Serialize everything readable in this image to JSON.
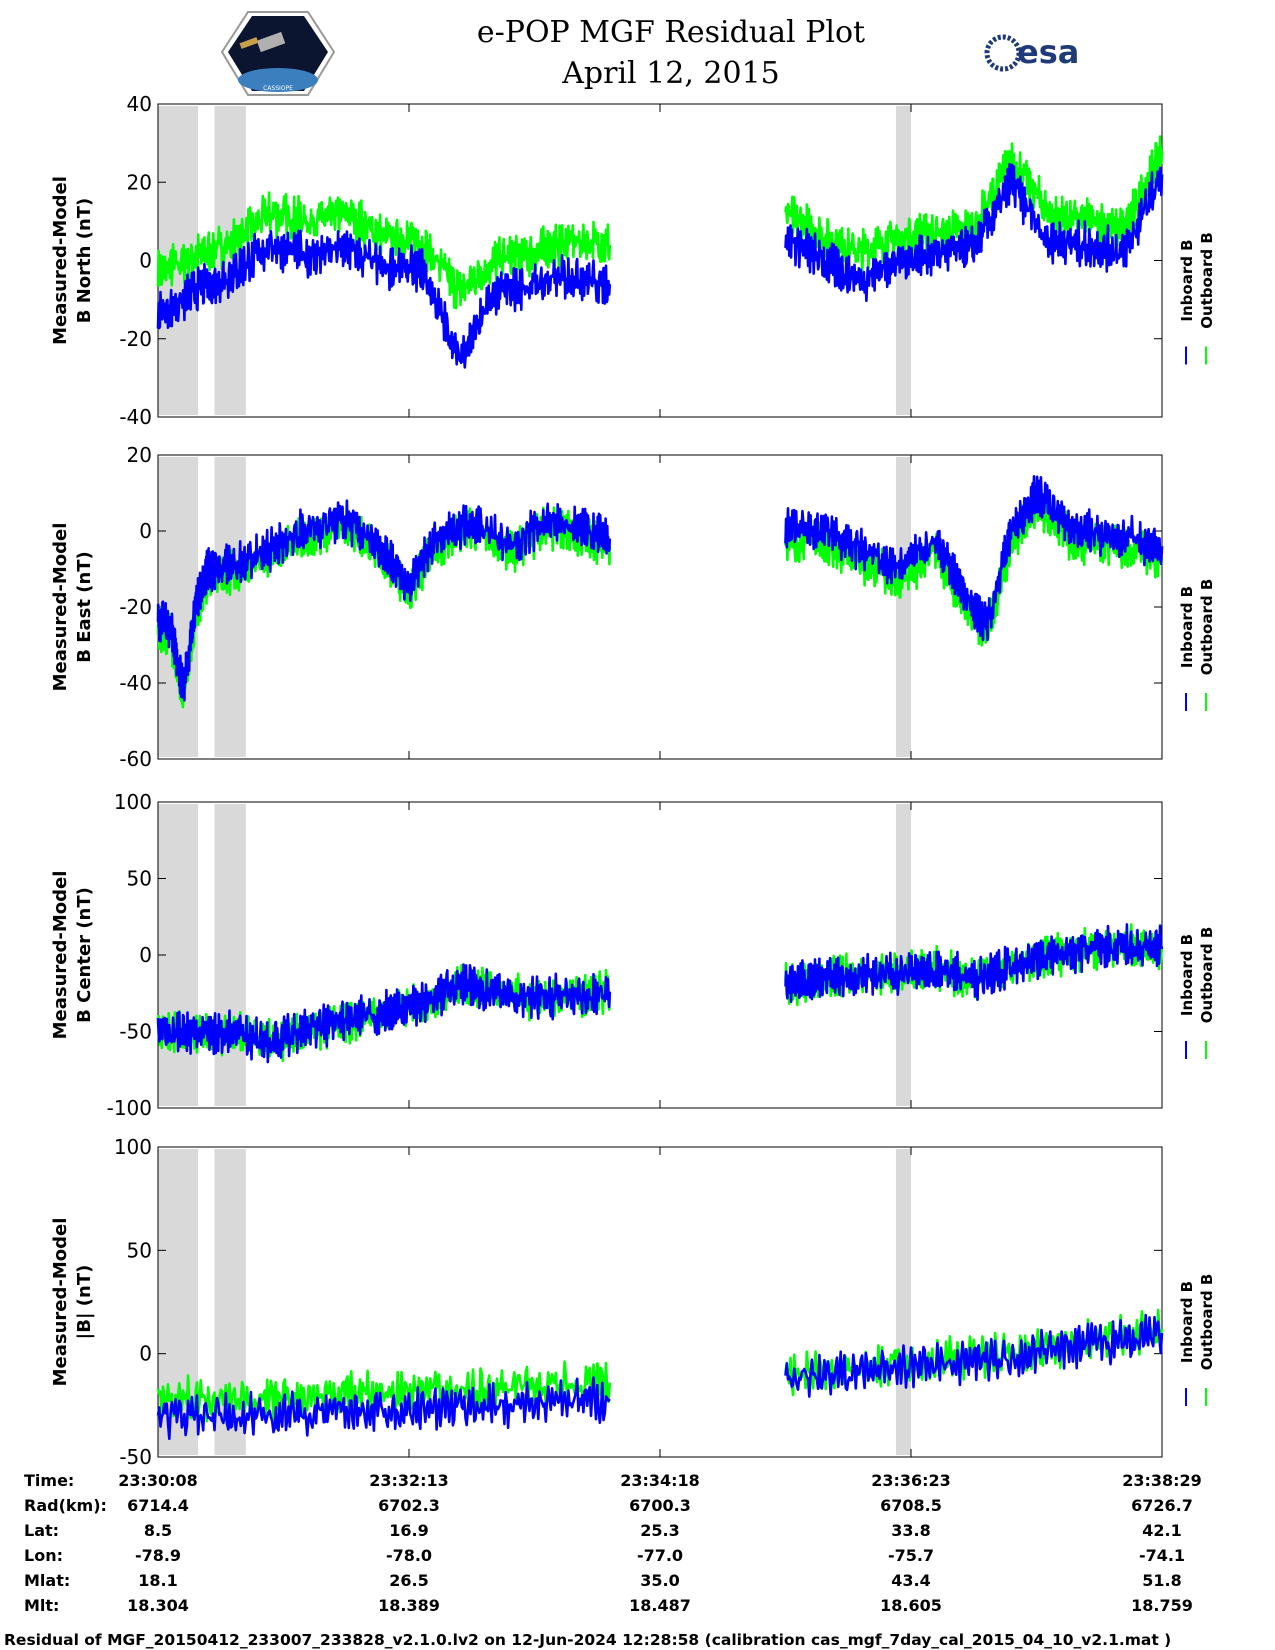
{
  "header": {
    "title": "e-POP MGF Residual Plot",
    "date": "April 12, 2015",
    "left_logo": "cassiope-mission-logo",
    "left_logo_text": "CASSIOPE",
    "right_logo": "esa-logo",
    "right_logo_text": "esa"
  },
  "legend": {
    "inboard": "Inboard B",
    "outboard": "Outboard B"
  },
  "colors": {
    "inboard": "#0000ff",
    "outboard": "#00ff00",
    "shade": "#d9d9d9",
    "axis": "#000000"
  },
  "chart_data": [
    {
      "type": "line",
      "id": "north",
      "ylabel": [
        "Measured-Model",
        "B North (nT)"
      ],
      "ylim": [
        -40,
        40
      ],
      "yticks": [
        -40,
        -20,
        0,
        20,
        40
      ],
      "shaded_x": [
        [
          0.0,
          0.32
        ],
        [
          0.45,
          0.7
        ],
        [
          5.88,
          6.0
        ]
      ],
      "segments": [
        {
          "x": [
            0,
            0.3,
            0.6,
            0.9,
            1.2,
            1.5,
            1.8,
            2.1,
            2.4,
            2.7,
            3.0,
            3.3,
            3.6
          ],
          "inboard": [
            -14,
            -8,
            -3,
            4,
            1,
            3,
            -2,
            -2,
            -25,
            -8,
            -6,
            -4,
            -6
          ],
          "outboard": [
            -3,
            1,
            5,
            12,
            10,
            12,
            6,
            5,
            -8,
            0,
            2,
            5,
            4
          ]
        },
        {
          "x": [
            5.0,
            5.3,
            5.6,
            5.9,
            6.2,
            6.5,
            6.8,
            7.1,
            7.4,
            7.7,
            8.0
          ],
          "inboard": [
            6,
            0,
            -5,
            0,
            2,
            3,
            20,
            5,
            4,
            2,
            22
          ],
          "outboard": [
            12,
            6,
            2,
            6,
            7,
            8,
            26,
            12,
            10,
            8,
            28
          ]
        }
      ]
    },
    {
      "type": "line",
      "id": "east",
      "ylabel": [
        "Measured-Model",
        "B East (nT)"
      ],
      "ylim": [
        -60,
        20
      ],
      "yticks": [
        -60,
        -40,
        -20,
        0,
        20
      ],
      "shaded_x": [
        [
          0.0,
          0.32
        ],
        [
          0.45,
          0.7
        ],
        [
          5.88,
          6.0
        ]
      ],
      "segments": [
        {
          "x": [
            0,
            0.1,
            0.2,
            0.3,
            0.4,
            0.6,
            0.9,
            1.2,
            1.5,
            1.8,
            2.0,
            2.2,
            2.5,
            2.8,
            3.1,
            3.4,
            3.6
          ],
          "inboard": [
            -24,
            -25,
            -42,
            -20,
            -10,
            -9,
            -5,
            1,
            3,
            -5,
            -14,
            -3,
            3,
            -4,
            3,
            0,
            -2
          ],
          "outboard": [
            -26,
            -27,
            -44,
            -22,
            -12,
            -11,
            -7,
            -1,
            1,
            -7,
            -16,
            -5,
            1,
            -6,
            1,
            -2,
            -4
          ]
        },
        {
          "x": [
            5.0,
            5.3,
            5.6,
            5.9,
            6.2,
            6.4,
            6.6,
            6.8,
            7.0,
            7.3,
            7.6,
            8.0
          ],
          "inboard": [
            0,
            0,
            -5,
            -10,
            -2,
            -15,
            -25,
            0,
            10,
            0,
            -1,
            -4
          ],
          "outboard": [
            -3,
            -3,
            -8,
            -13,
            -5,
            -18,
            -28,
            -3,
            7,
            -3,
            -4,
            -7
          ]
        }
      ]
    },
    {
      "type": "line",
      "id": "center",
      "ylabel": [
        "Measured-Model",
        "B Center (nT)"
      ],
      "ylim": [
        -100,
        100
      ],
      "yticks": [
        -100,
        -50,
        0,
        50,
        100
      ],
      "shaded_x": [
        [
          0.0,
          0.32
        ],
        [
          0.45,
          0.7
        ],
        [
          5.88,
          6.0
        ]
      ],
      "segments": [
        {
          "x": [
            0,
            0.3,
            0.6,
            0.9,
            1.2,
            1.5,
            1.8,
            2.1,
            2.4,
            2.7,
            3.0,
            3.3,
            3.6
          ],
          "inboard": [
            -50,
            -52,
            -50,
            -57,
            -48,
            -44,
            -38,
            -33,
            -18,
            -25,
            -28,
            -27,
            -24
          ],
          "outboard": [
            -50,
            -52,
            -50,
            -57,
            -48,
            -44,
            -38,
            -33,
            -18,
            -25,
            -28,
            -27,
            -24
          ]
        },
        {
          "x": [
            5.0,
            5.3,
            5.6,
            5.9,
            6.2,
            6.5,
            6.8,
            7.1,
            7.4,
            7.7,
            8.0
          ],
          "inboard": [
            -20,
            -14,
            -13,
            -12,
            -9,
            -16,
            -6,
            0,
            4,
            6,
            4
          ],
          "outboard": [
            -20,
            -14,
            -13,
            -12,
            -9,
            -16,
            -6,
            0,
            4,
            6,
            4
          ]
        }
      ]
    },
    {
      "type": "line",
      "id": "total",
      "ylabel": [
        "Measured-Model",
        "|B| (nT)"
      ],
      "ylim": [
        -50,
        100
      ],
      "yticks": [
        -50,
        0,
        50,
        100
      ],
      "shaded_x": [
        [
          0.0,
          0.32
        ],
        [
          0.45,
          0.7
        ],
        [
          5.88,
          6.0
        ]
      ],
      "segments": [
        {
          "x": [
            0,
            0.6,
            1.2,
            1.8,
            2.4,
            3.0,
            3.6
          ],
          "inboard": [
            -30,
            -30,
            -29,
            -27,
            -26,
            -24,
            -22
          ],
          "outboard": [
            -22,
            -22,
            -21,
            -19,
            -18,
            -16,
            -14
          ]
        },
        {
          "x": [
            5.0,
            5.6,
            6.2,
            6.8,
            7.4,
            8.0
          ],
          "inboard": [
            -12,
            -9,
            -5,
            -2,
            4,
            10
          ],
          "outboard": [
            -10,
            -7,
            -3,
            0,
            6,
            12
          ]
        }
      ]
    }
  ],
  "x_axis": {
    "row_labels": [
      "Time:",
      "Rad(km):",
      "Lat:",
      "Lon:",
      "Mlat:",
      "Mlt:"
    ],
    "columns": [
      [
        "23:30:08",
        "6714.4",
        "8.5",
        "-78.9",
        "18.1",
        "18.304"
      ],
      [
        "23:32:13",
        "6702.3",
        "16.9",
        "-78.0",
        "26.5",
        "18.389"
      ],
      [
        "23:34:18",
        "6700.3",
        "25.3",
        "-77.0",
        "35.0",
        "18.487"
      ],
      [
        "23:36:23",
        "6708.5",
        "33.8",
        "-75.7",
        "43.4",
        "18.605"
      ],
      [
        "23:38:29",
        "6726.7",
        "42.1",
        "-74.1",
        "51.8",
        "18.759"
      ]
    ]
  },
  "footer": "Residual of MGF_20150412_233007_233828_v2.1.0.lv2 on 12-Jun-2024 12:28:58 (calibration cas_mgf_7day_cal_2015_04_10_v2.1.mat )"
}
